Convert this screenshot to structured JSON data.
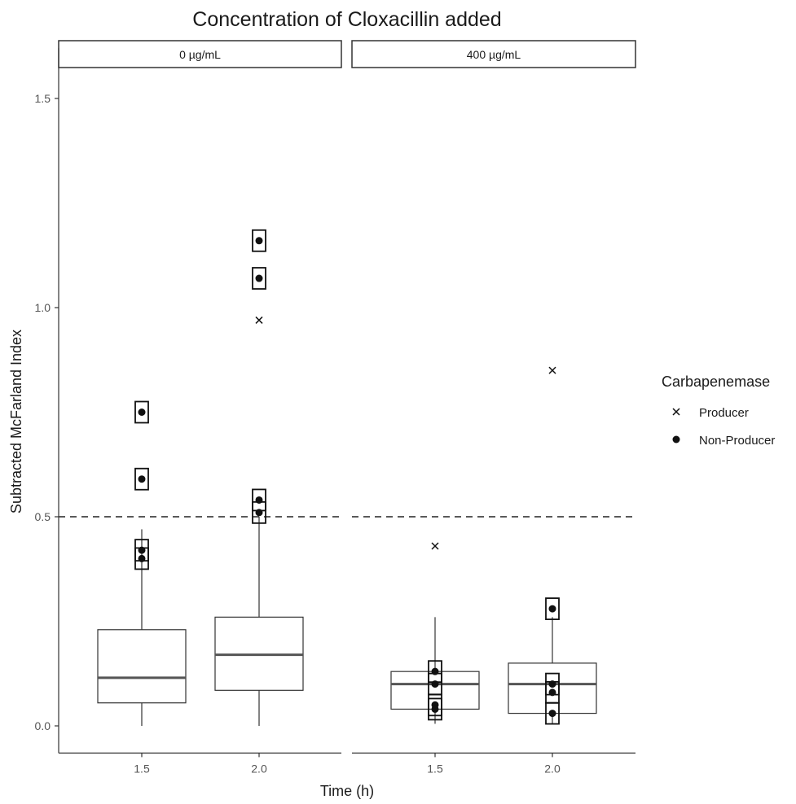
{
  "chart_data": {
    "type": "box",
    "title": "Concentration of Cloxacillin added",
    "xlabel": "Time (h)",
    "ylabel": "Subtracted McFarland Index",
    "ylim": [
      -0.065,
      1.62
    ],
    "yticks": [
      0.0,
      0.5,
      1.0,
      1.5
    ],
    "ytick_labels": [
      "0.0",
      "0.5",
      "1.0",
      "1.5"
    ],
    "categories": [
      "1.5",
      "2.0"
    ],
    "threshold": 0.5,
    "grid": false,
    "legend": {
      "title": "Carbapenemase",
      "position": "right",
      "entries": [
        {
          "name": "Producer",
          "marker": "cross"
        },
        {
          "name": "Non-Producer",
          "marker": "dot"
        }
      ]
    },
    "panels": [
      {
        "facet": "0 µg/mL",
        "boxes": [
          {
            "x": "1.5",
            "whisker_low": 0.0,
            "q1": 0.055,
            "median": 0.115,
            "q3": 0.23,
            "whisker_high": 0.47,
            "points": [
              {
                "y": 0.75,
                "group": "Non-Producer",
                "boxed": true
              },
              {
                "y": 0.59,
                "group": "Non-Producer",
                "boxed": true
              },
              {
                "y": 0.42,
                "group": "Non-Producer",
                "boxed": true
              },
              {
                "y": 0.4,
                "group": "Non-Producer",
                "boxed": true
              }
            ]
          },
          {
            "x": "2.0",
            "whisker_low": 0.0,
            "q1": 0.085,
            "median": 0.17,
            "q3": 0.26,
            "whisker_high": 0.5,
            "points": [
              {
                "y": 1.16,
                "group": "Non-Producer",
                "boxed": true
              },
              {
                "y": 1.07,
                "group": "Non-Producer",
                "boxed": true
              },
              {
                "y": 0.97,
                "group": "Producer",
                "boxed": false
              },
              {
                "y": 0.54,
                "group": "Non-Producer",
                "boxed": true
              },
              {
                "y": 0.51,
                "group": "Non-Producer",
                "boxed": true
              }
            ]
          }
        ]
      },
      {
        "facet": "400 µg/mL",
        "boxes": [
          {
            "x": "1.5",
            "whisker_low": 0.005,
            "q1": 0.04,
            "median": 0.1,
            "q3": 0.13,
            "whisker_high": 0.26,
            "points": [
              {
                "y": 0.43,
                "group": "Producer",
                "boxed": false
              },
              {
                "y": 0.13,
                "group": "Non-Producer",
                "boxed": true
              },
              {
                "y": 0.1,
                "group": "Non-Producer",
                "boxed": true
              },
              {
                "y": 0.05,
                "group": "Non-Producer",
                "boxed": true
              },
              {
                "y": 0.04,
                "group": "Non-Producer",
                "boxed": true
              }
            ]
          },
          {
            "x": "2.0",
            "whisker_low": 0.005,
            "q1": 0.03,
            "median": 0.1,
            "q3": 0.15,
            "whisker_high": 0.26,
            "points": [
              {
                "y": 0.85,
                "group": "Producer",
                "boxed": false
              },
              {
                "y": 0.28,
                "group": "Non-Producer",
                "boxed": true
              },
              {
                "y": 0.1,
                "group": "Non-Producer",
                "boxed": true
              },
              {
                "y": 0.08,
                "group": "Non-Producer",
                "boxed": true
              },
              {
                "y": 0.03,
                "group": "Non-Producer",
                "boxed": true
              }
            ]
          }
        ]
      }
    ]
  }
}
